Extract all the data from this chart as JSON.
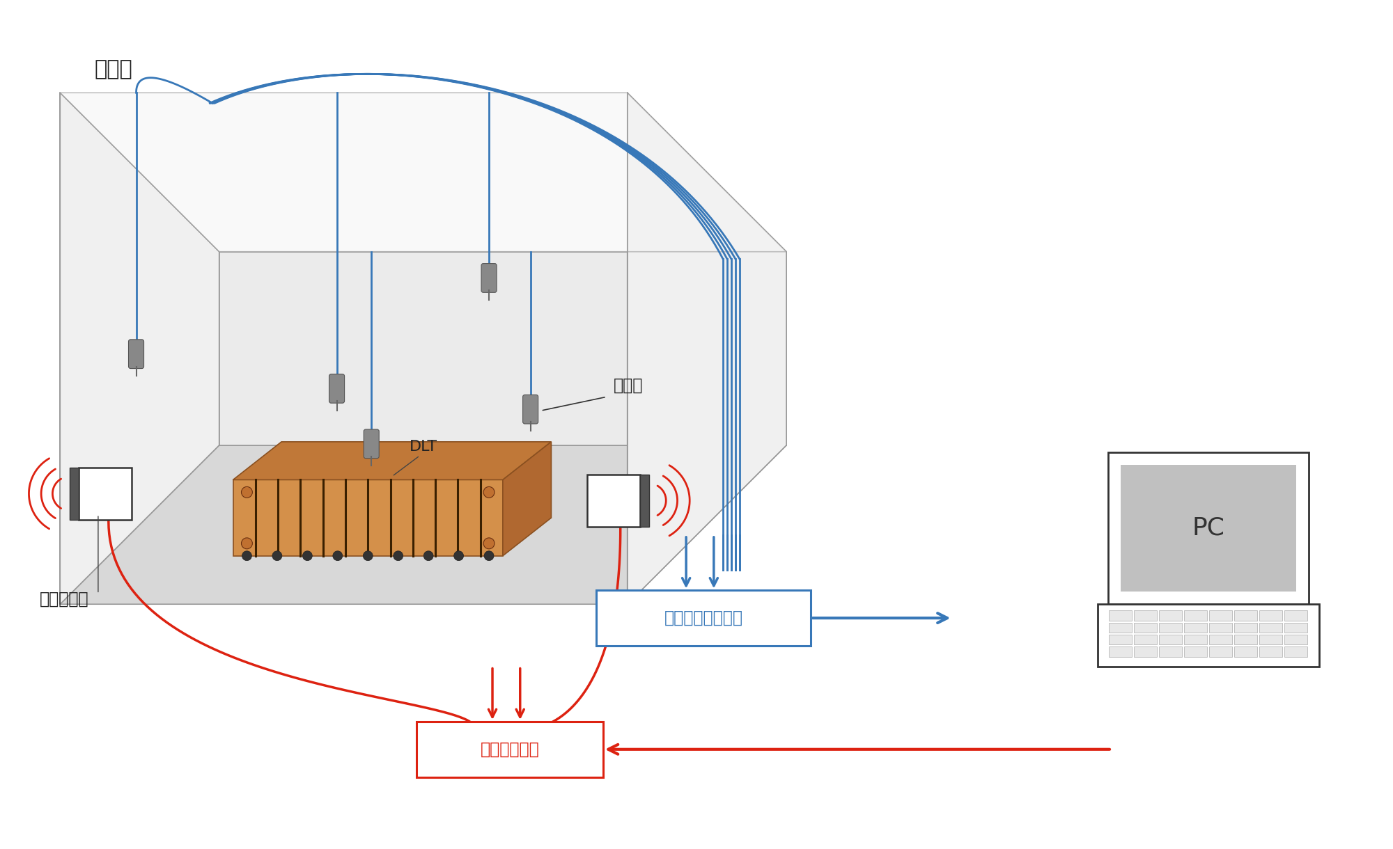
{
  "bg_color": "#ffffff",
  "room_label": "残響室",
  "mic_label": "マイク",
  "speaker_label": "スピーカー",
  "dlt_label": "DLT",
  "recorder_label": "データレコーダー",
  "pc_label": "PC",
  "amp_label": "パワーアンプ",
  "blue_color": "#3878b8",
  "red_color": "#dd2211",
  "gray_edge": "#999999",
  "gray_light": "#dddddd",
  "floor_color": "#d8d8d8",
  "wall_color": "#f0f0f0",
  "room_lw": 1.2
}
